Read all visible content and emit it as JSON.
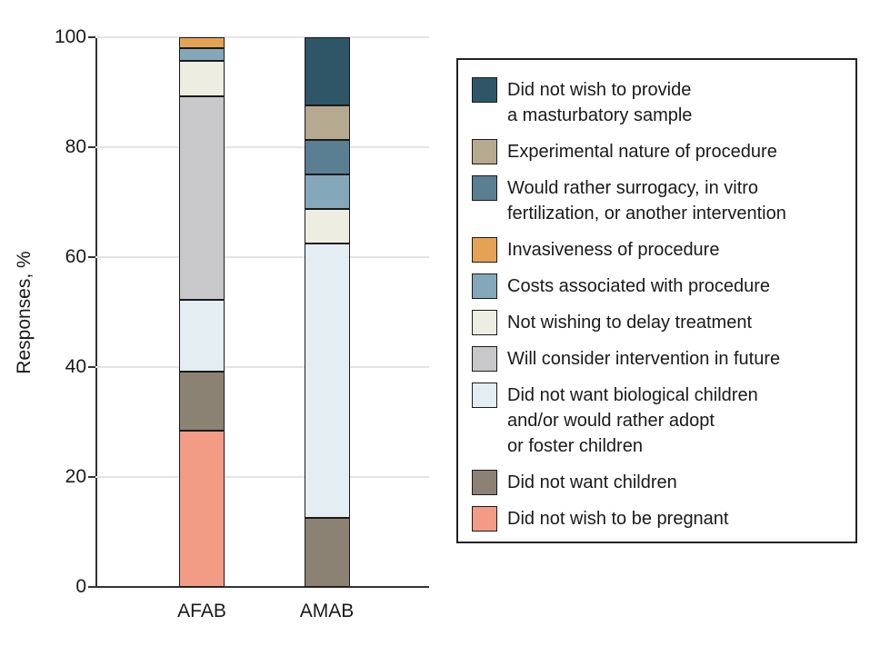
{
  "figure": {
    "background": "#ffffff",
    "axis_color": "#333333",
    "grid_color": "#e4e4e4",
    "text_color": "#1a1a1a"
  },
  "chart_data": {
    "type": "stacked-bar",
    "title": "",
    "ylabel": "Responses, %",
    "xlabel": "",
    "ylim": [
      0,
      100
    ],
    "yticks": [
      0,
      20,
      40,
      60,
      80,
      100
    ],
    "grid": true,
    "legend_position": "right",
    "categories": [
      "AFAB",
      "AMAB"
    ],
    "series": [
      {
        "name": "Did not wish to be pregnant",
        "color": "#f29b85",
        "values": [
          28.3,
          0
        ]
      },
      {
        "name": "Did not want children",
        "color": "#8b8274",
        "values": [
          10.9,
          12.5
        ]
      },
      {
        "name": "Did not want biological children and/or would rather adopt or foster children",
        "color": "#e4edf2",
        "values": [
          13.0,
          50.0
        ]
      },
      {
        "name": "Will consider intervention in future",
        "color": "#c8c8ca",
        "values": [
          37.0,
          0
        ]
      },
      {
        "name": "Not wishing to delay treatment",
        "color": "#eeede2",
        "values": [
          6.5,
          6.25
        ]
      },
      {
        "name": "Costs associated with procedure",
        "color": "#84a8ba",
        "values": [
          2.2,
          6.25
        ]
      },
      {
        "name": "Invasiveness of procedure",
        "color": "#e5a255",
        "values": [
          2.1,
          0
        ]
      },
      {
        "name": "Would rather surrogacy, in vitro fertilization, or another intervention",
        "color": "#5a7e92",
        "values": [
          0,
          6.25
        ]
      },
      {
        "name": "Experimental nature of procedure",
        "color": "#b5a98f",
        "values": [
          0,
          6.25
        ]
      },
      {
        "name": "Did not wish to provide a masturbatory sample",
        "color": "#2e5666",
        "values": [
          0,
          12.5
        ]
      }
    ],
    "legend": [
      {
        "label": "Did not wish to provide\na masturbatory sample",
        "color": "#2e5666"
      },
      {
        "label": "Experimental nature of procedure",
        "color": "#b5a98f"
      },
      {
        "label": "Would rather surrogacy, in vitro\nfertilization, or another intervention",
        "color": "#5a7e92"
      },
      {
        "label": "Invasiveness of procedure",
        "color": "#e5a255"
      },
      {
        "label": "Costs associated with procedure",
        "color": "#84a8ba"
      },
      {
        "label": "Not wishing to delay treatment",
        "color": "#eeede2"
      },
      {
        "label": "Will consider intervention in future",
        "color": "#c8c8ca"
      },
      {
        "label": "Did not want biological children\nand/or would rather adopt\nor foster children",
        "color": "#e4edf2"
      },
      {
        "label": "Did not want children",
        "color": "#8b8274"
      },
      {
        "label": "Did not wish to be pregnant",
        "color": "#f29b85"
      }
    ]
  }
}
